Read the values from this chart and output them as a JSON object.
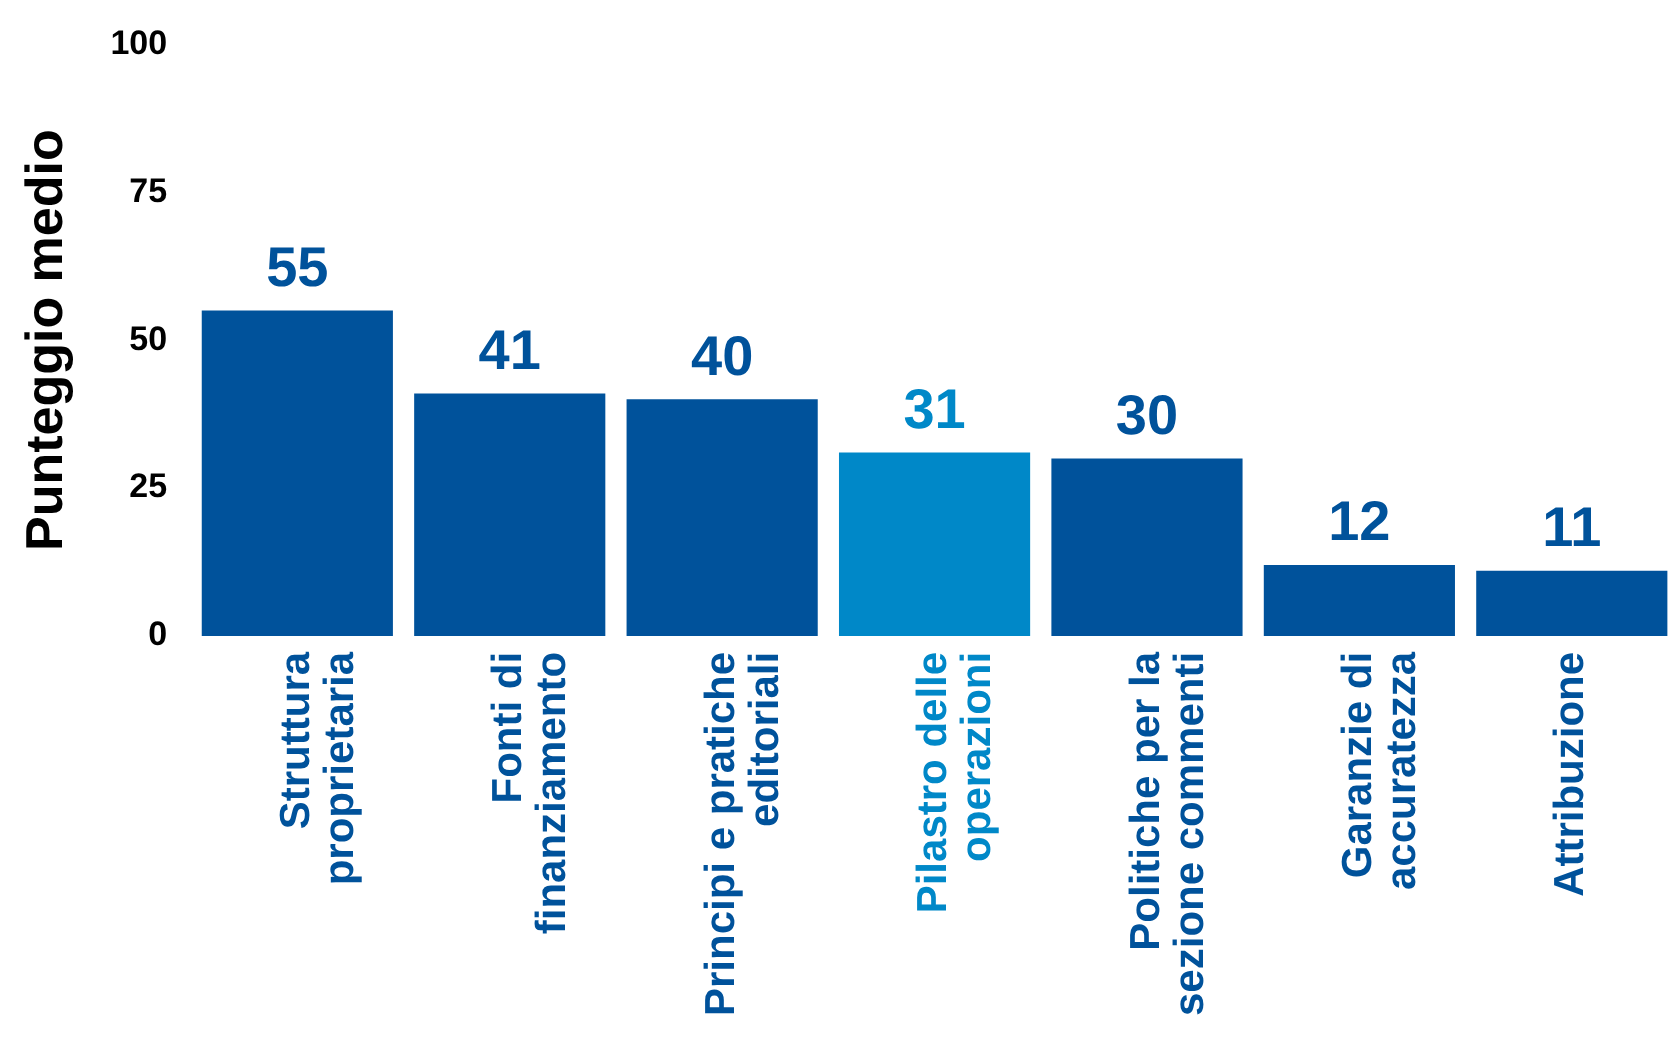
{
  "chart_data": {
    "type": "bar",
    "ylabel": "Punteggio medio",
    "categories": [
      "Struttura\nproprietaria",
      "Fonti di\nfinanziamento",
      "Principi e pratiche\neditoriali",
      "Pilastro delle\noperazioni",
      "Politiche per la\nsezione commenti",
      "Garanzie di\naccuratezza",
      "Attribuzione"
    ],
    "values": [
      55,
      41,
      40,
      31,
      30,
      12,
      11
    ],
    "colors": [
      "#00529b",
      "#00529b",
      "#00529b",
      "#0088c8",
      "#00529b",
      "#00529b",
      "#00529b"
    ],
    "ylim": [
      0,
      100
    ],
    "yticks": [
      0,
      25,
      50,
      75,
      100
    ],
    "grid": false,
    "legend": false,
    "data_labels": true
  }
}
